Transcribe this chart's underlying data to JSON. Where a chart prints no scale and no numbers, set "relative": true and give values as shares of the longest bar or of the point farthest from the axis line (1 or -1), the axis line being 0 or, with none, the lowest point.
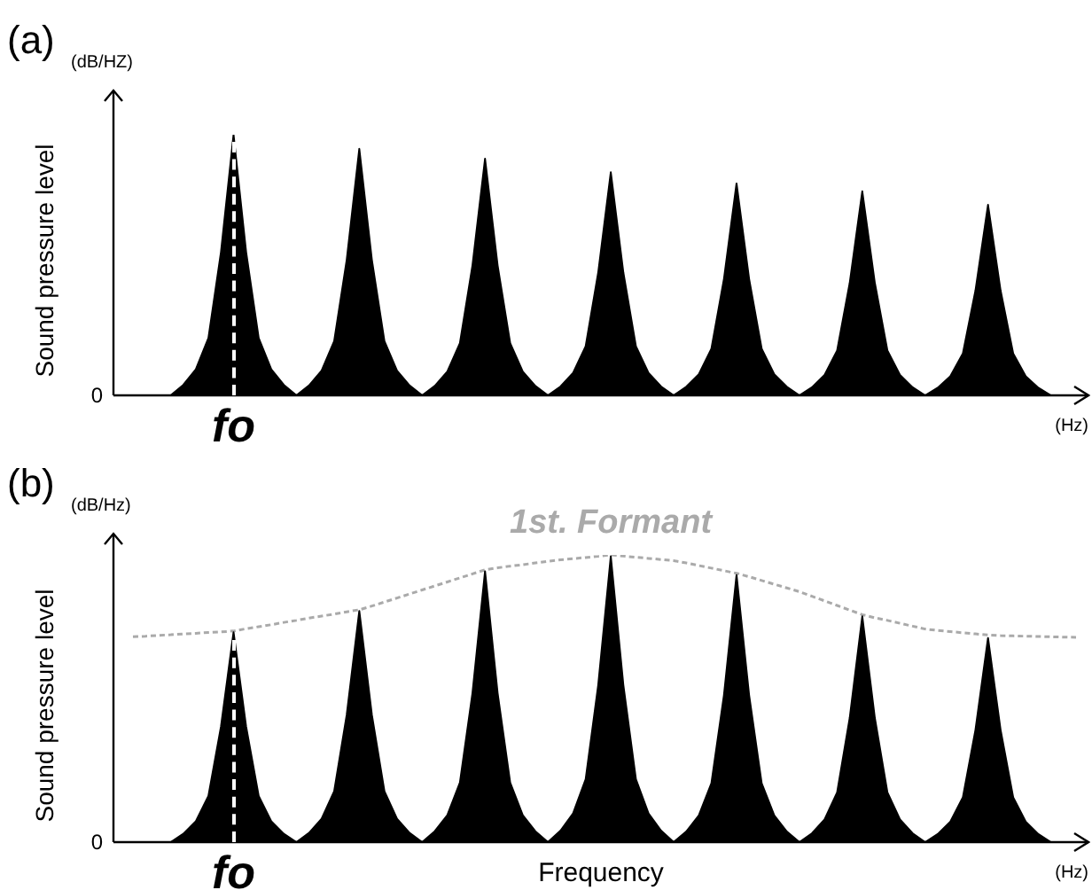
{
  "chart_data": [
    {
      "type": "area",
      "title": "(a)",
      "ylabel": "Sound pressure level",
      "relative": true,
      "categories": [
        null,
        null,
        null,
        null,
        null,
        null,
        null,
        null,
        null,
        null,
        null,
        null,
        null,
        null,
        null,
        null,
        null,
        null,
        null,
        null,
        null,
        null,
        null,
        null,
        null,
        null,
        null,
        null,
        null,
        null,
        null,
        null,
        null,
        null,
        null,
        null,
        null,
        null,
        null,
        null,
        null,
        null,
        null,
        null,
        null,
        null,
        null,
        null,
        null,
        null,
        null,
        null,
        null,
        null,
        null,
        null,
        null,
        null,
        null,
        null,
        null,
        null,
        null,
        null,
        null,
        null,
        null,
        null,
        null,
        null,
        null,
        null,
        null,
        null,
        null,
        null
      ],
      "series": [
        {
          "color": "#000000",
          "values": [
            0,
            0,
            0,
            0,
            0.04,
            0.1,
            0.22,
            0.55,
            1,
            0.55,
            0.22,
            0.1,
            0.04,
            0,
            0.038,
            0.095,
            0.208,
            0.52,
            0.946,
            0.52,
            0.208,
            0.095,
            0.038,
            0,
            0.036,
            0.091,
            0.2,
            0.499,
            0.908,
            0.499,
            0.2,
            0.091,
            0.036,
            0,
            0.034,
            0.086,
            0.188,
            0.471,
            0.856,
            0.471,
            0.188,
            0.086,
            0.034,
            0,
            0.033,
            0.081,
            0.179,
            0.447,
            0.813,
            0.447,
            0.179,
            0.081,
            0.033,
            0,
            0.031,
            0.078,
            0.172,
            0.431,
            0.783,
            0.431,
            0.172,
            0.078,
            0.031,
            0,
            0.029,
            0.073,
            0.161,
            0.402,
            0.731,
            0.402,
            0.161,
            0.073,
            0.029,
            0,
            0,
            0
          ]
        }
      ],
      "annotations": [
        "(dB/HZ)",
        "(Hz)",
        "0",
        "fo"
      ]
    },
    {
      "type": "area",
      "title": "(b)",
      "ylabel": "Sound pressure level",
      "xlabel": "Frequency",
      "relative": true,
      "categories": [
        null,
        null,
        null,
        null,
        null,
        null,
        null,
        null,
        null,
        null,
        null,
        null,
        null,
        null,
        null,
        null,
        null,
        null,
        null,
        null,
        null,
        null,
        null,
        null,
        null,
        null,
        null,
        null,
        null,
        null,
        null,
        null,
        null,
        null,
        null,
        null,
        null,
        null,
        null,
        null,
        null,
        null,
        null,
        null,
        null,
        null,
        null,
        null,
        null,
        null,
        null,
        null,
        null,
        null,
        null,
        null,
        null,
        null,
        null,
        null,
        null,
        null,
        null,
        null,
        null,
        null,
        null,
        null,
        null,
        null,
        null,
        null,
        null,
        null,
        null,
        null
      ],
      "series": [
        {
          "color": "#000000",
          "values": [
            0,
            0,
            0,
            0,
            0.029,
            0.073,
            0.161,
            0.402,
            0.731,
            0.402,
            0.161,
            0.073,
            0.029,
            0,
            0.032,
            0.081,
            0.177,
            0.443,
            0.805,
            0.443,
            0.177,
            0.081,
            0.032,
            0,
            0.038,
            0.094,
            0.207,
            0.519,
            0.943,
            0.519,
            0.207,
            0.094,
            0.038,
            0,
            0.04,
            0.1,
            0.219,
            0.547,
            0.995,
            0.547,
            0.219,
            0.1,
            0.04,
            0,
            0.037,
            0.093,
            0.205,
            0.512,
            0.93,
            0.512,
            0.205,
            0.093,
            0.037,
            0,
            0.031,
            0.079,
            0.173,
            0.432,
            0.786,
            0.432,
            0.173,
            0.079,
            0.031,
            0,
            0.028,
            0.071,
            0.156,
            0.391,
            0.711,
            0.391,
            0.156,
            0.071,
            0.028,
            0,
            0,
            0
          ]
        },
        {
          "type": "line",
          "name": "1st. Formant",
          "color": "#aaaaaa",
          "line_style": "dashed",
          "values": [
            0.715,
            0.717,
            0.72,
            0.722,
            0.725,
            0.727,
            0.73,
            0.732,
            0.735,
            0.743,
            0.75,
            0.757,
            0.765,
            0.772,
            0.78,
            0.787,
            0.794,
            0.802,
            0.809,
            0.822,
            0.836,
            0.85,
            0.864,
            0.878,
            0.892,
            0.906,
            0.92,
            0.934,
            0.948,
            0.955,
            0.961,
            0.966,
            0.972,
            0.978,
            0.983,
            0.987,
            0.991,
            0.995,
            1,
            0.996,
            0.992,
            0.988,
            0.984,
            0.98,
            0.972,
            0.963,
            0.954,
            0.945,
            0.936,
            0.924,
            0.911,
            0.898,
            0.885,
            0.872,
            0.856,
            0.84,
            0.824,
            0.808,
            0.792,
            0.781,
            0.772,
            0.762,
            0.752,
            0.742,
            0.737,
            0.733,
            0.729,
            0.725,
            0.721,
            0.719,
            0.718,
            0.717,
            0.716,
            0.715,
            0.714,
            0.713
          ]
        }
      ],
      "annotations": [
        "(dB/Hz)",
        "(Hz)",
        "0",
        "fo"
      ]
    }
  ]
}
